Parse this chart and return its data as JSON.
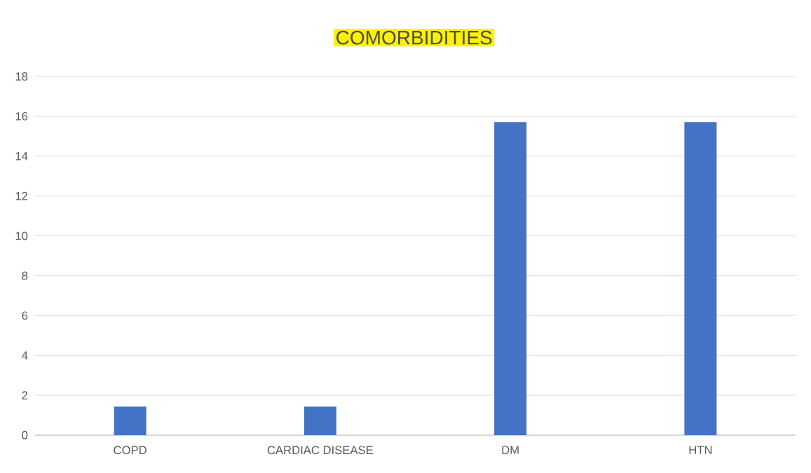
{
  "chart_data": {
    "type": "bar",
    "title": "COMORBIDITIES",
    "categories": [
      "COPD",
      "CARDIAC DISEASE",
      "DM",
      "HTN"
    ],
    "values": [
      1.43,
      1.43,
      15.71,
      15.71
    ],
    "color": "#4472c4",
    "ylim": [
      0,
      18
    ],
    "yticks": [
      0,
      2,
      4,
      6,
      8,
      10,
      12,
      14,
      16,
      18
    ],
    "grid": "y"
  }
}
